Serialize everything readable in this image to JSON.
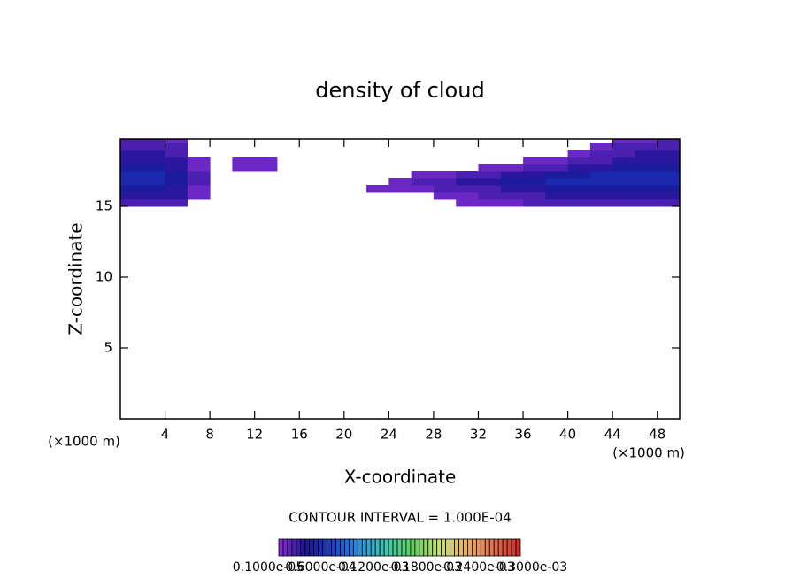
{
  "chart_data": {
    "type": "contour",
    "title": "density of cloud",
    "x_label": "X-coordinate",
    "y_label": "Z-coordinate",
    "x_unit_label": "(×1000 m)",
    "x_unit_label_right": "(×1000 m)",
    "contour_interval_label": "CONTOUR INTERVAL = 1.000E-04",
    "xlim": [
      0,
      50
    ],
    "ylim": [
      0,
      19.75
    ],
    "xticks": [
      4,
      8,
      12,
      16,
      20,
      24,
      28,
      32,
      36,
      40,
      44,
      48
    ],
    "yticks": [
      5,
      10,
      15
    ],
    "x": [
      1,
      3,
      5,
      7,
      9,
      11,
      13,
      15,
      17,
      19,
      21,
      23,
      25,
      27,
      29,
      31,
      33,
      35,
      37,
      39,
      41,
      43,
      45,
      47,
      49
    ],
    "z": [
      15.25,
      15.75,
      16.25,
      16.75,
      17.25,
      17.75,
      18.25,
      18.75,
      19.25,
      19.75
    ],
    "values": [
      [
        2e-05,
        2e-05,
        2e-05,
        0,
        0,
        0,
        0,
        0,
        0,
        0,
        0,
        0,
        0,
        0,
        0,
        1e-05,
        1e-05,
        1e-05,
        2e-05,
        2e-05,
        2e-05,
        2e-05,
        2e-05,
        2e-05,
        2e-05
      ],
      [
        3e-05,
        3e-05,
        3e-05,
        1e-05,
        0,
        0,
        0,
        0,
        0,
        0,
        0,
        0,
        0,
        0,
        1e-05,
        1e-05,
        2e-05,
        2e-05,
        2e-05,
        3e-05,
        3e-05,
        3e-05,
        3e-05,
        3e-05,
        3e-05
      ],
      [
        4e-05,
        4e-05,
        3e-05,
        1e-05,
        0,
        0,
        0,
        0,
        0,
        0,
        0,
        1e-05,
        1e-05,
        1e-05,
        2e-05,
        2e-05,
        2e-05,
        3e-05,
        3e-05,
        4e-05,
        4e-05,
        4e-05,
        4e-05,
        4e-05,
        4e-05
      ],
      [
        5e-05,
        5e-05,
        4e-05,
        2e-05,
        0,
        0,
        0,
        0,
        0,
        0,
        0,
        0,
        1e-05,
        2e-05,
        2e-05,
        3e-05,
        3e-05,
        4e-05,
        4e-05,
        5e-05,
        5e-05,
        5e-05,
        5e-05,
        5e-05,
        5e-05
      ],
      [
        5e-05,
        5e-05,
        4e-05,
        2e-05,
        0,
        0,
        0,
        0,
        0,
        0,
        0,
        0,
        0,
        1e-05,
        1e-05,
        2e-05,
        2e-05,
        3e-05,
        3e-05,
        4e-05,
        4e-05,
        5e-05,
        5e-05,
        5e-05,
        5e-05
      ],
      [
        4e-05,
        4e-05,
        3e-05,
        1e-05,
        0,
        1e-05,
        1e-05,
        0,
        0,
        0,
        0,
        0,
        0,
        0,
        0,
        0,
        1e-05,
        1e-05,
        2e-05,
        2e-05,
        3e-05,
        3e-05,
        4e-05,
        4e-05,
        4e-05
      ],
      [
        3e-05,
        3e-05,
        3e-05,
        1e-05,
        0,
        1e-05,
        1e-05,
        0,
        0,
        0,
        0,
        0,
        0,
        0,
        0,
        0,
        0,
        0,
        1e-05,
        1e-05,
        2e-05,
        2e-05,
        3e-05,
        3e-05,
        3e-05
      ],
      [
        3e-05,
        3e-05,
        2e-05,
        0,
        0,
        0,
        0,
        0,
        0,
        0,
        0,
        0,
        0,
        0,
        0,
        0,
        0,
        0,
        0,
        0,
        1e-05,
        2e-05,
        2e-05,
        3e-05,
        3e-05
      ],
      [
        2e-05,
        2e-05,
        2e-05,
        0,
        0,
        0,
        0,
        0,
        0,
        0,
        0,
        0,
        0,
        0,
        0,
        0,
        0,
        0,
        0,
        0,
        0,
        1e-05,
        2e-05,
        2e-05,
        2e-05
      ],
      [
        2e-05,
        2e-05,
        1e-05,
        0,
        0,
        0,
        0,
        0,
        0,
        0,
        0,
        0,
        0,
        0,
        0,
        0,
        0,
        0,
        0,
        0,
        0,
        0,
        1e-05,
        1e-05,
        2e-05
      ]
    ],
    "colorbar_ticks": [
      {
        "value": 1e-06,
        "label": "0.1000e-05"
      },
      {
        "value": 6e-05,
        "label": "0.6000e-04"
      },
      {
        "value": 0.00012,
        "label": "0.1200e-03"
      },
      {
        "value": 0.00018,
        "label": "0.1800e-03"
      },
      {
        "value": 0.00024,
        "label": "0.2400e-03"
      },
      {
        "value": 0.0003,
        "label": "0.3000e-03"
      }
    ],
    "colorscale": [
      "#8a2fd8",
      "#1c1494",
      "#1840c8",
      "#2a90e0",
      "#40c8b0",
      "#60d060",
      "#c8e070",
      "#e8b060",
      "#e07050",
      "#d02828"
    ]
  }
}
